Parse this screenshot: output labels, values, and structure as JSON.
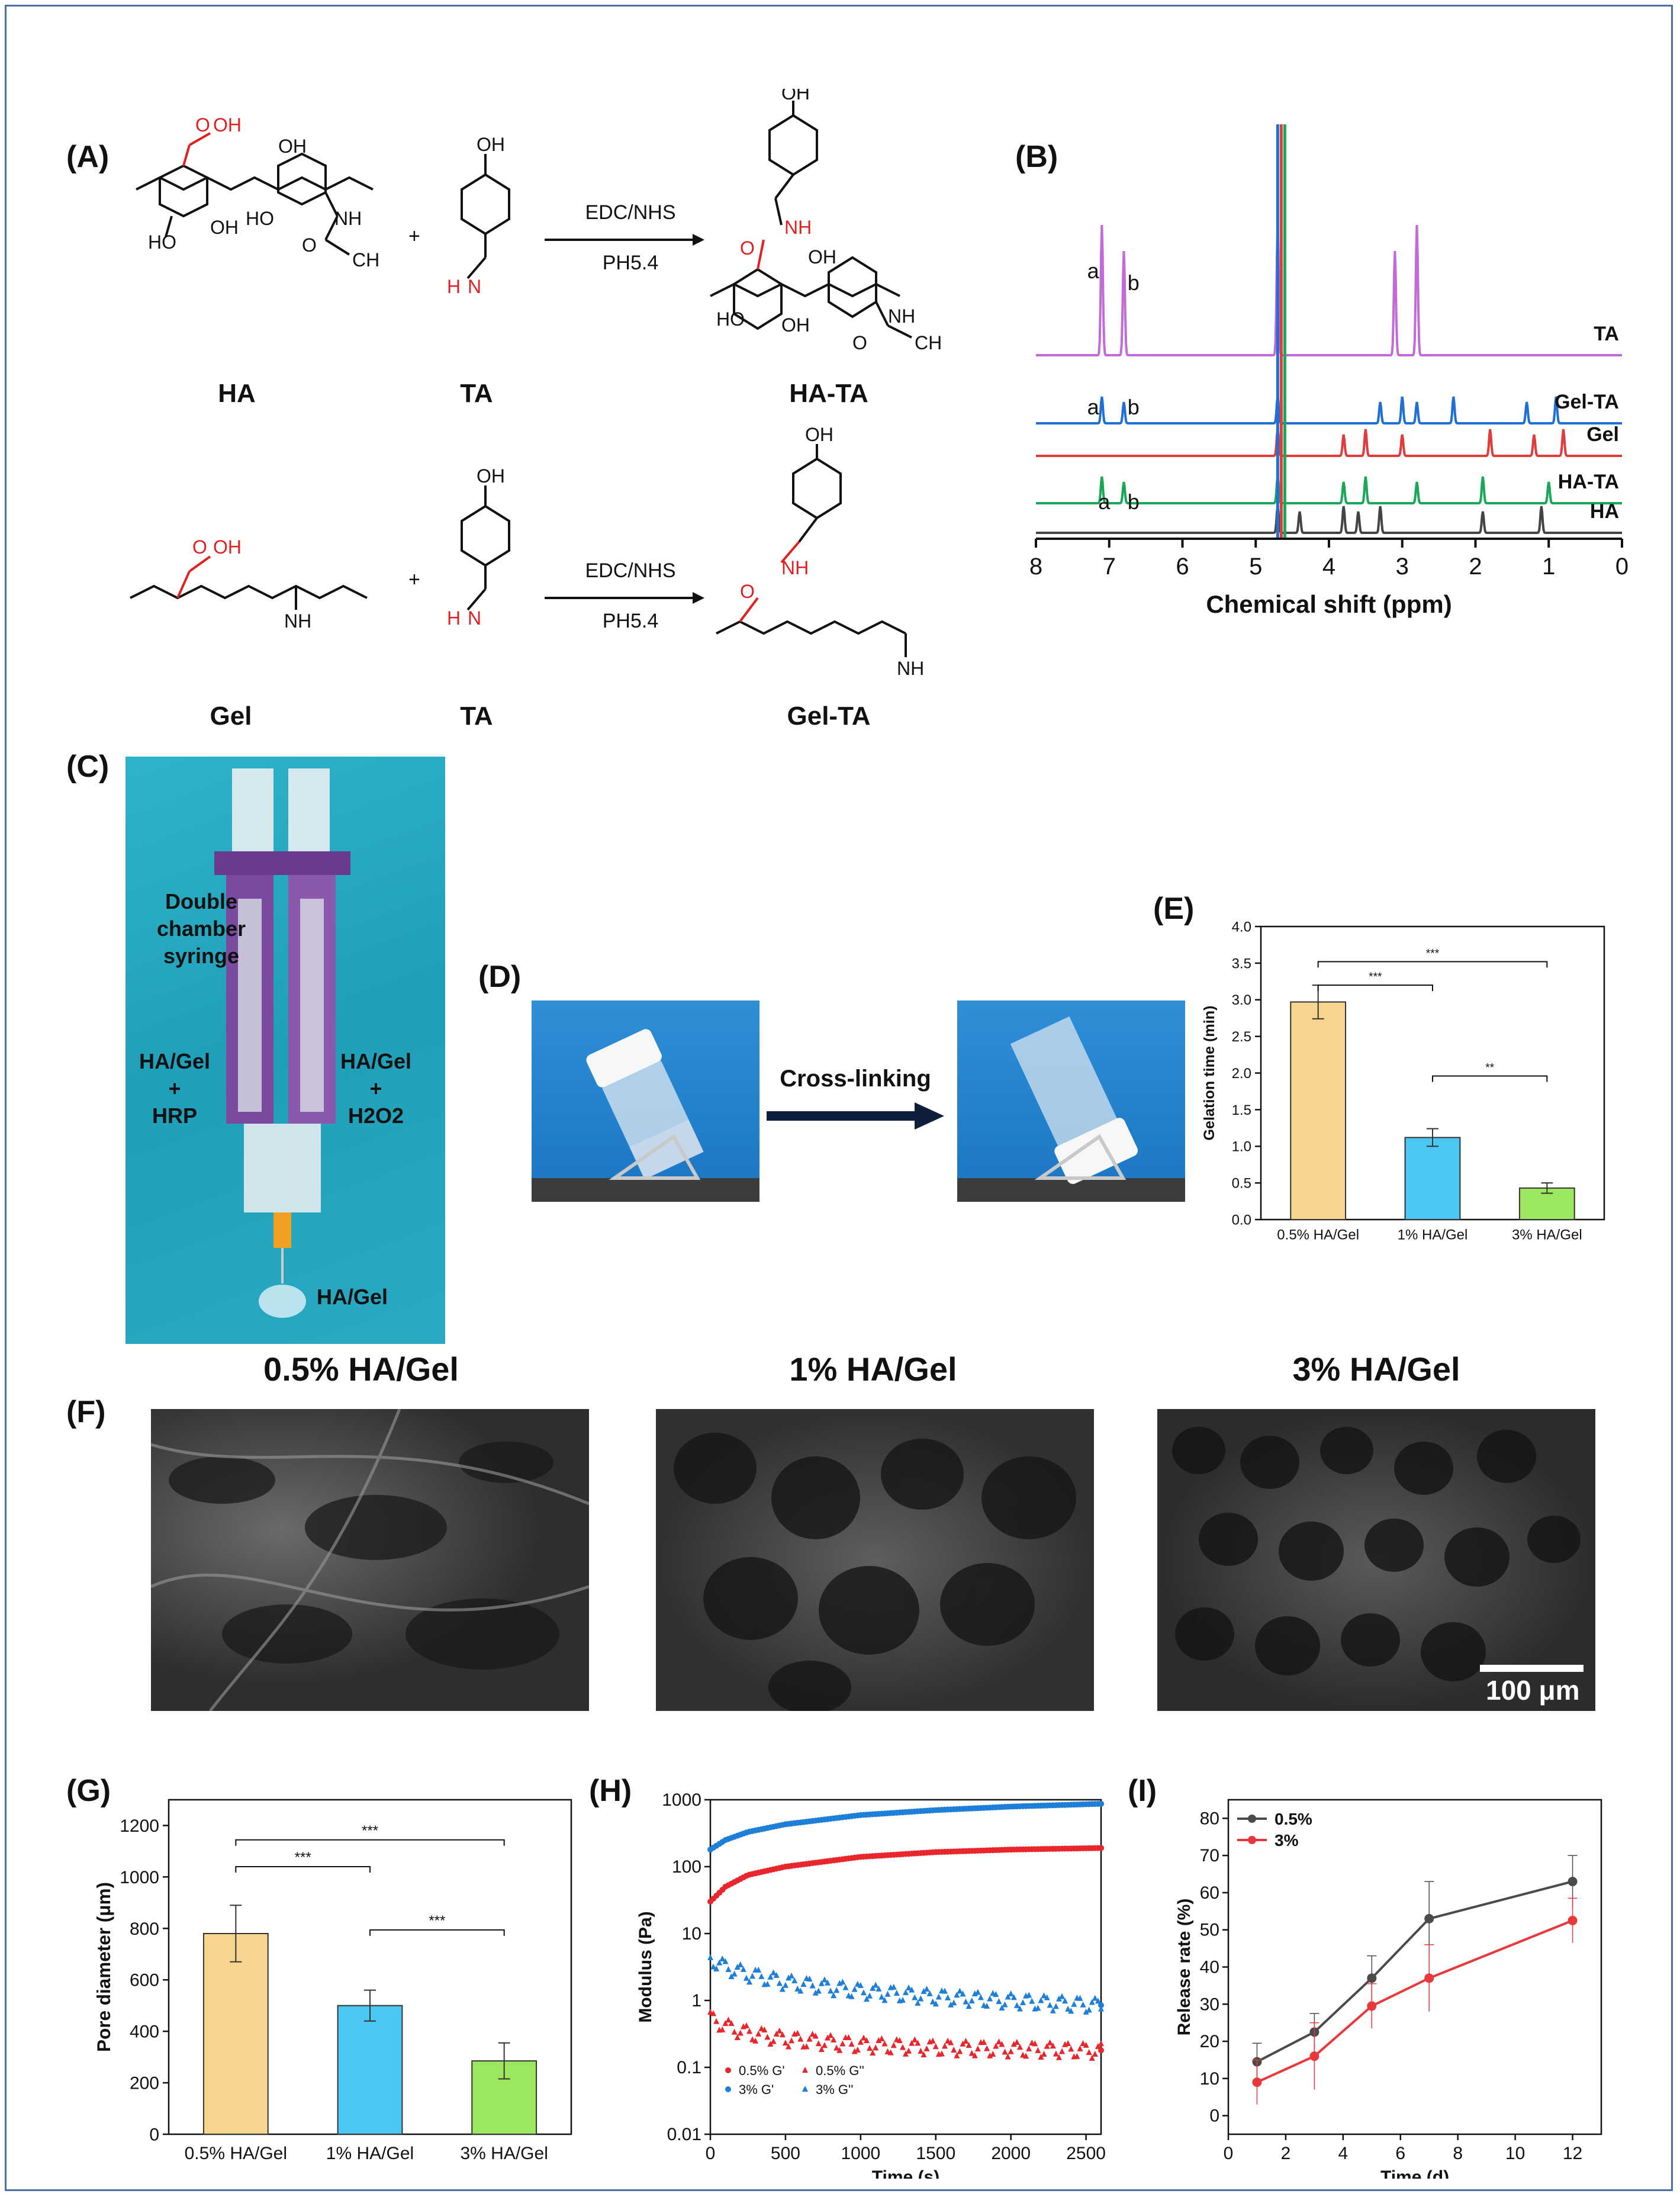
{
  "panels": {
    "A": "(A)",
    "B": "(B)",
    "C": "(C)",
    "D": "(D)",
    "E": "(E)",
    "F": "(F)",
    "G": "(G)",
    "H": "(H)",
    "I": "(I)"
  },
  "chemistry": {
    "reagent1": "EDC/NHS",
    "condition1": "PH5.4",
    "reagent2": "EDC/NHS",
    "condition2": "PH5.4",
    "labels": [
      "HA",
      "TA",
      "HA-TA",
      "Gel",
      "TA",
      "Gel-TA"
    ],
    "plus": "+"
  },
  "syringe_photo": {
    "title_lines": [
      "Double",
      "chamber",
      "syringe"
    ],
    "left_lines": [
      "HA/Gel",
      "+",
      "HRP"
    ],
    "right_lines": [
      "HA/Gel",
      "+",
      "H2O2"
    ],
    "bottom": "HA/Gel"
  },
  "crosslink": {
    "label": "Cross-linking"
  },
  "sem": {
    "titles": [
      "0.5% HA/Gel",
      "1% HA/Gel",
      "3% HA/Gel"
    ],
    "scale_bar": "100 μm"
  },
  "chart_data": [
    {
      "panel": "B",
      "type": "line",
      "title": "",
      "xlabel": "Chemical shift (ppm)",
      "ylabel": "",
      "xlim": [
        8,
        0
      ],
      "x_ticks": [
        "8",
        "7",
        "6",
        "5",
        "4",
        "3",
        "2",
        "1",
        "0"
      ],
      "series": [
        {
          "name": "TA",
          "color": "#c36ad9",
          "peaks_ppm": [
            7.1,
            6.8,
            4.7,
            3.1,
            2.8
          ]
        },
        {
          "name": "Gel-TA",
          "color": "#1f6fd6",
          "peaks_ppm": [
            7.1,
            6.8,
            4.7,
            3.3,
            3.0,
            2.8,
            2.3,
            1.3,
            0.9
          ]
        },
        {
          "name": "Gel",
          "color": "#e03c3c",
          "peaks_ppm": [
            4.7,
            3.8,
            3.5,
            3.0,
            1.8,
            1.2,
            0.8
          ]
        },
        {
          "name": "HA-TA",
          "color": "#19a85a",
          "peaks_ppm": [
            7.1,
            6.8,
            4.7,
            3.8,
            3.5,
            2.8,
            1.9,
            1.0
          ]
        },
        {
          "name": "HA",
          "color": "#444444",
          "peaks_ppm": [
            4.7,
            4.4,
            3.8,
            3.6,
            3.3,
            1.9,
            1.1
          ]
        }
      ],
      "annotations": [
        "a",
        "b",
        "a",
        "b",
        "a",
        "b"
      ]
    },
    {
      "panel": "E",
      "type": "bar",
      "title": "",
      "xlabel": "",
      "ylabel": "Gelation time (min)",
      "ylim": [
        0,
        4.0
      ],
      "y_ticks": [
        "0.0",
        "0.5",
        "1.0",
        "1.5",
        "2.0",
        "2.5",
        "3.0",
        "3.5",
        "4.0"
      ],
      "categories": [
        "0.5% HA/Gel",
        "1% HA/Gel",
        "3% HA/Gel"
      ],
      "values": [
        2.97,
        1.12,
        0.43
      ],
      "errors": [
        0.23,
        0.12,
        0.07
      ],
      "colors": [
        "#f8d58f",
        "#4cc7f4",
        "#9be85e"
      ],
      "significance": [
        {
          "from": 0,
          "to": 1,
          "label": "***"
        },
        {
          "from": 0,
          "to": 2,
          "label": "***"
        },
        {
          "from": 1,
          "to": 2,
          "label": "**"
        }
      ]
    },
    {
      "panel": "G",
      "type": "bar",
      "title": "",
      "xlabel": "",
      "ylabel": "Pore diameter (μm)",
      "ylim": [
        0,
        1300
      ],
      "y_ticks": [
        "0",
        "200",
        "400",
        "600",
        "800",
        "1000",
        "1200"
      ],
      "categories": [
        "0.5% HA/Gel",
        "1% HA/Gel",
        "3% HA/Gel"
      ],
      "values": [
        780,
        500,
        285
      ],
      "errors": [
        110,
        60,
        70
      ],
      "colors": [
        "#f8d58f",
        "#4cc7f4",
        "#9be85e"
      ],
      "significance": [
        {
          "from": 0,
          "to": 1,
          "label": "***"
        },
        {
          "from": 0,
          "to": 2,
          "label": "***"
        },
        {
          "from": 1,
          "to": 2,
          "label": "***"
        }
      ]
    },
    {
      "panel": "H",
      "type": "scatter",
      "title": "",
      "xlabel": "Time (s)",
      "ylabel": "Modulus (Pa)",
      "xlim": [
        0,
        2600
      ],
      "ylim": [
        0.01,
        1000
      ],
      "yscale": "log",
      "x_ticks": [
        "0",
        "500",
        "1000",
        "1500",
        "2000",
        "2500"
      ],
      "y_ticks": [
        "0.01",
        "0.1",
        "1",
        "10",
        "100",
        "1000"
      ],
      "legend": [
        "0.5% G'",
        "0.5% G''",
        "3% G'",
        "3% G''"
      ],
      "series": [
        {
          "name": "0.5% G'",
          "color": "#e8262b",
          "marker": "circle",
          "x": [
            0,
            100,
            250,
            500,
            1000,
            1500,
            2000,
            2600
          ],
          "y": [
            30,
            50,
            75,
            100,
            140,
            165,
            180,
            190
          ]
        },
        {
          "name": "0.5% G''",
          "color": "#e8262b",
          "marker": "triangle",
          "x": [
            0,
            100,
            250,
            500,
            1000,
            1500,
            2000,
            2600
          ],
          "y": [
            0.55,
            0.42,
            0.33,
            0.27,
            0.22,
            0.2,
            0.19,
            0.18
          ]
        },
        {
          "name": "3% G'",
          "color": "#1e7fd8",
          "marker": "circle",
          "x": [
            0,
            100,
            250,
            500,
            1000,
            1500,
            2000,
            2600
          ],
          "y": [
            180,
            250,
            330,
            430,
            590,
            700,
            790,
            870
          ]
        },
        {
          "name": "3% G''",
          "color": "#1e7fd8",
          "marker": "triangle",
          "x": [
            0,
            100,
            250,
            500,
            1000,
            1500,
            2000,
            2600
          ],
          "y": [
            4.2,
            3.2,
            2.5,
            1.9,
            1.4,
            1.15,
            1.0,
            0.85
          ]
        }
      ]
    },
    {
      "panel": "I",
      "type": "line",
      "title": "",
      "xlabel": "Time (d)",
      "ylabel": "Release rate (%)",
      "xlim": [
        0,
        13
      ],
      "ylim": [
        -5,
        85
      ],
      "x_ticks": [
        "0",
        "2",
        "4",
        "6",
        "8",
        "10",
        "12"
      ],
      "y_ticks": [
        "0",
        "10",
        "20",
        "30",
        "40",
        "50",
        "60",
        "70",
        "80"
      ],
      "legend_position": "top-left",
      "series": [
        {
          "name": "0.5%",
          "color": "#4b4b4b",
          "x": [
            1,
            3,
            5,
            7,
            12
          ],
          "y": [
            14.5,
            22.5,
            37,
            53,
            63
          ],
          "errors": [
            5,
            5,
            6,
            10,
            7
          ]
        },
        {
          "name": "3%",
          "color": "#e8383b",
          "x": [
            1,
            3,
            5,
            7,
            12
          ],
          "y": [
            9,
            16,
            29.5,
            37,
            52.5
          ],
          "errors": [
            6,
            9,
            6,
            9,
            6
          ]
        }
      ]
    }
  ]
}
